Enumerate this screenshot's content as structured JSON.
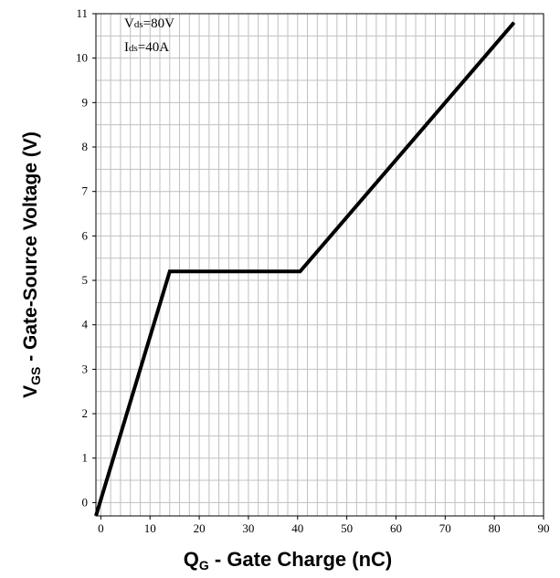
{
  "chart_data": {
    "type": "line",
    "xlabel": {
      "main": "Q",
      "sub": "G",
      "rest": " - Gate Charge (nC)"
    },
    "ylabel": {
      "main": "V",
      "sub": "GS",
      "rest": " - Gate-Source Voltage (V)"
    },
    "xlim": [
      -1,
      90
    ],
    "ylim": [
      -0.3,
      11
    ],
    "x_major_ticks": [
      0,
      10,
      20,
      30,
      40,
      50,
      60,
      70,
      80,
      90
    ],
    "y_major_ticks": [
      0,
      1,
      2,
      3,
      4,
      5,
      6,
      7,
      8,
      9,
      10,
      11
    ],
    "x_minor_step": 2,
    "y_minor_step": 0.5,
    "grid": true,
    "annotations": [
      {
        "main": "V",
        "sub": "ds",
        "rest": "=80V"
      },
      {
        "main": "I",
        "sub": "ds",
        "rest": "=40A"
      }
    ],
    "series": [
      {
        "x": [
          -1,
          14,
          40.5,
          84
        ],
        "y": [
          -0.3,
          5.2,
          5.2,
          10.8
        ]
      }
    ],
    "colors": {
      "line": "#000000",
      "grid": "#c0c0c0",
      "frame": "#000000"
    }
  }
}
